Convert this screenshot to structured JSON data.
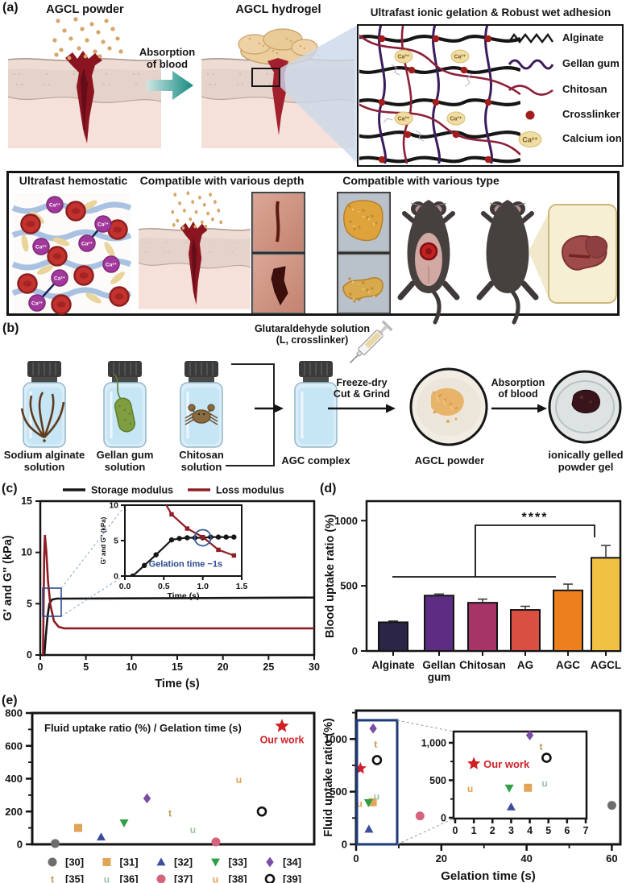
{
  "figure": {
    "panel_a": {
      "label": "(a)",
      "powder_title": "AGCL powder",
      "arrow_label": "Absorption\nof blood",
      "hydrogel_title": "AGCL hydrogel",
      "ca_symbol": "Ca²⁺",
      "mechanism": {
        "title": "Ultrafast ionic gelation & Robust wet adhesion",
        "legend": [
          {
            "name": "Alginate",
            "color": "#161616",
            "marker": "zigzag"
          },
          {
            "name": "Gellan gum",
            "color": "#3b1c5c",
            "marker": "wave"
          },
          {
            "name": "Chitosan",
            "color": "#8c2038",
            "marker": "wave"
          },
          {
            "name": "Crosslinker",
            "color": "#a31d1d",
            "marker": "dot"
          },
          {
            "name": "Calcium ion",
            "color": "#f0dca6",
            "marker": "ellipse"
          }
        ]
      },
      "features": {
        "hemostatic_title": "Ultrafast hemostatic",
        "depth_title": "Compatible with various depth",
        "type_title": "Compatible with various type"
      }
    },
    "panel_b": {
      "label": "(b)",
      "crosslinker_label": "Glutaraldehyde solution\n(L, crosslinker)",
      "vial_labels": [
        "Sodium alginate\nsolution",
        "Gellan gum\nsolution",
        "Chitosan\nsolution",
        "AGC complex"
      ],
      "step1_label": "Freeze-dry\nCut & Grind",
      "powder_label": "AGCL powder",
      "step2_label": "Absorption\nof blood",
      "gel_label": "ionically gelled\npowder gel"
    },
    "panel_c_label": "(c)",
    "panel_d_label": "(d)",
    "panel_e_label": "(e)"
  },
  "chart_data": [
    {
      "id": "rheology",
      "type": "line",
      "xlabel": "Time (s)",
      "ylabel": "G' and G'' (kPa)",
      "xlim": [
        0,
        30
      ],
      "ylim": [
        0,
        15
      ],
      "xticks": [
        0,
        5,
        10,
        15,
        20,
        25,
        30
      ],
      "yticks": [
        0,
        5,
        10,
        15
      ],
      "legend": [
        {
          "name": "Storage modulus",
          "color": "#161616"
        },
        {
          "name": "Loss modulus",
          "color": "#8f1d24"
        }
      ],
      "series": [
        {
          "name": "Storage modulus",
          "color": "#161616",
          "x": [
            0,
            0.45,
            0.6,
            0.8,
            1.0,
            1.3,
            1.8,
            3,
            30
          ],
          "y": [
            0,
            0,
            1.8,
            3.8,
            5.0,
            5.4,
            5.5,
            5.5,
            5.6
          ]
        },
        {
          "name": "Loss modulus",
          "color": "#8f1d24",
          "x": [
            0.3,
            0.42,
            0.5,
            0.65,
            0.85,
            1.1,
            1.5,
            2.0,
            2.6,
            4,
            30
          ],
          "y": [
            0,
            9.5,
            11.7,
            10.2,
            7.2,
            4.9,
            3.3,
            2.75,
            2.6,
            2.6,
            2.6
          ]
        }
      ],
      "inset": {
        "xlabel": "Time (s)",
        "ylabel": "G' and G'' (kPa)",
        "xlim": [
          0,
          1.5
        ],
        "ylim": [
          0,
          10
        ],
        "xticks": [
          0,
          0.5,
          1,
          1.5
        ],
        "yticks": [
          0,
          5,
          10
        ],
        "annotation": "Gelation time ~1s",
        "gelation_point": {
          "x": 1.0,
          "y": 5.4
        },
        "series": [
          {
            "name": "Storage modulus",
            "marker": "circle",
            "color": "#161616",
            "x": [
              0.1,
              0.25,
              0.4,
              0.6,
              0.7,
              0.8,
              0.9,
              1.0,
              1.1,
              1.2,
              1.3,
              1.4
            ],
            "y": [
              0,
              1.5,
              3.0,
              5.1,
              5.3,
              5.4,
              5.4,
              5.4,
              5.5,
              5.5,
              5.5,
              5.5
            ]
          },
          {
            "name": "Loss modulus",
            "marker": "square",
            "color": "#8f1d24",
            "x": [
              0.5,
              0.6,
              0.8,
              1.0,
              1.2,
              1.4
            ],
            "y": [
              10.6,
              8.7,
              6.7,
              5.5,
              3.7,
              2.9
            ]
          }
        ]
      }
    },
    {
      "id": "blood_uptake",
      "type": "bar",
      "ylabel": "Blood uptake ratio (%)",
      "ylim": [
        0,
        1150
      ],
      "yticks": [
        0,
        500,
        1000
      ],
      "categories": [
        "Alginate",
        "Gellan\ngum",
        "Chitosan",
        "AG",
        "AGC",
        "AGCL"
      ],
      "values": [
        220,
        425,
        370,
        315,
        465,
        715
      ],
      "errors": [
        10,
        12,
        28,
        28,
        48,
        95
      ],
      "colors": [
        "#2b2547",
        "#5c2d82",
        "#a63467",
        "#d94f41",
        "#ee7f1d",
        "#f0c143"
      ],
      "significance": {
        "label": "****"
      }
    },
    {
      "id": "ratio_strip",
      "type": "scatter",
      "title": "Fluid uptake ratio (%) / Gelation time (s)",
      "ylim": [
        0,
        800
      ],
      "yticks": [
        0,
        200,
        400,
        600,
        800
      ],
      "points": [
        {
          "ref": "[30]",
          "marker": "circle",
          "color": "#6e6e6e",
          "value": 5
        },
        {
          "ref": "[31]",
          "marker": "square",
          "color": "#e2a558",
          "value": 100
        },
        {
          "ref": "[32]",
          "marker": "triangle-up",
          "color": "#3c4d9e",
          "value": 45
        },
        {
          "ref": "[33]",
          "marker": "triangle-down",
          "color": "#2f9e44",
          "value": 130
        },
        {
          "ref": "[34]",
          "marker": "diamond",
          "color": "#7a4fa3",
          "value": 280
        },
        {
          "ref": "[35]",
          "marker": "t",
          "color": "#bf9a55",
          "value": 190
        },
        {
          "ref": "[36]",
          "marker": "u",
          "color": "#9cc0a5",
          "value": 90
        },
        {
          "ref": "[37]",
          "marker": "circle",
          "color": "#d4647e",
          "value": 15
        },
        {
          "ref": "[38]",
          "marker": "u",
          "color": "#e2a050",
          "value": 395
        },
        {
          "ref": "[39]",
          "marker": "open-circle",
          "color": "#111111",
          "value": 200
        }
      ],
      "our_work": {
        "label": "Our work",
        "marker": "star",
        "color": "#cf2027",
        "value": 720
      },
      "legend_rows": [
        [
          "[30]",
          "[31]",
          "[32]",
          "[33]",
          "[34]"
        ],
        [
          "[35]",
          "[36]",
          "[37]",
          "[38]",
          "[39]"
        ]
      ]
    },
    {
      "id": "uptake_vs_time",
      "type": "scatter",
      "xlabel": "Gelation time (s)",
      "ylabel": "Fluid uptake ratio (%)",
      "xlim": [
        0,
        62
      ],
      "ylim": [
        0,
        1270
      ],
      "xticks": [
        0,
        20,
        40,
        60
      ],
      "yticks": [
        0,
        500,
        1000
      ],
      "points": [
        {
          "ref": "[30]",
          "marker": "circle",
          "color": "#6e6e6e",
          "x": 60,
          "y": 370
        },
        {
          "ref": "[31]",
          "marker": "square",
          "color": "#e2a558",
          "x": 3.9,
          "y": 400
        },
        {
          "ref": "[32]",
          "marker": "triangle-up",
          "color": "#3c4d9e",
          "x": 3.0,
          "y": 145
        },
        {
          "ref": "[33]",
          "marker": "triangle-down",
          "color": "#2f9e44",
          "x": 2.9,
          "y": 395
        },
        {
          "ref": "[34]",
          "marker": "diamond",
          "color": "#7a4fa3",
          "x": 4.0,
          "y": 1100
        },
        {
          "ref": "[35]",
          "marker": "t",
          "color": "#bf9a55",
          "x": 4.6,
          "y": 950
        },
        {
          "ref": "[36]",
          "marker": "u",
          "color": "#9cc0a5",
          "x": 4.8,
          "y": 460
        },
        {
          "ref": "[37]",
          "marker": "circle",
          "color": "#d4647e",
          "x": 15,
          "y": 270
        },
        {
          "ref": "[38]",
          "marker": "u",
          "color": "#e2a050",
          "x": 0.8,
          "y": 390
        },
        {
          "ref": "[39]",
          "marker": "open-circle",
          "color": "#111111",
          "x": 4.9,
          "y": 800
        }
      ],
      "our_work": {
        "label": "Our work",
        "marker": "star",
        "color": "#cf2027",
        "x": 1.0,
        "y": 720
      },
      "inset": {
        "xlim": [
          0,
          7
        ],
        "ylim": [
          0,
          1150
        ],
        "xticks": [
          0,
          1,
          2,
          3,
          4,
          5,
          6,
          7
        ],
        "yticks": [
          0,
          500,
          1000
        ],
        "ytick_labels": [
          "0",
          "500",
          "1,000"
        ]
      }
    }
  ]
}
